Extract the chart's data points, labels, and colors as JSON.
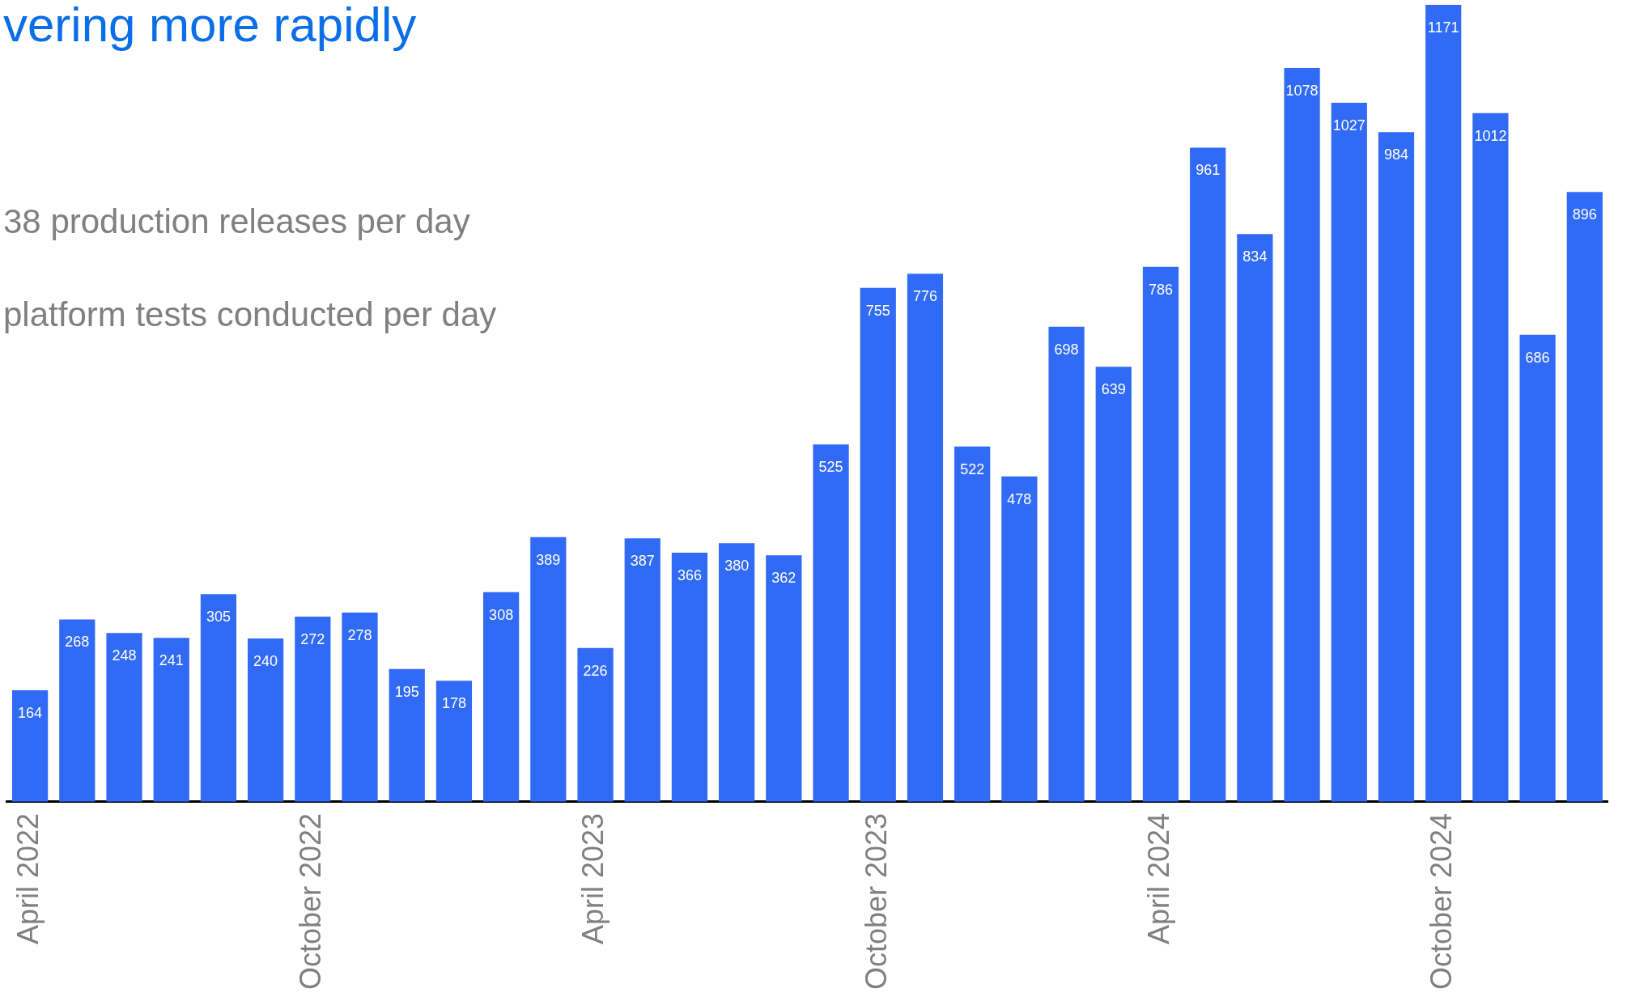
{
  "chart_data": {
    "type": "bar",
    "title": "vering more rapidly",
    "annotations": [
      "38 production releases per day",
      "platform tests conducted per day"
    ],
    "categories": [
      "April 2022",
      null,
      null,
      null,
      null,
      null,
      "October 2022",
      null,
      null,
      null,
      null,
      null,
      "April 2023",
      null,
      null,
      null,
      null,
      null,
      "October 2023",
      null,
      null,
      null,
      null,
      null,
      "April 2024",
      null,
      null,
      null,
      null,
      null,
      "October 2024",
      null,
      null,
      null
    ],
    "values": [
      164,
      268,
      248,
      241,
      305,
      240,
      272,
      278,
      195,
      178,
      308,
      389,
      226,
      387,
      366,
      380,
      362,
      525,
      755,
      776,
      522,
      478,
      698,
      639,
      786,
      961,
      834,
      1078,
      1027,
      984,
      1171,
      1012,
      686,
      896
    ],
    "color": "#316bf5",
    "ylim": [
      0,
      1178
    ],
    "data_labels": true,
    "grid": false,
    "legend": false
  }
}
